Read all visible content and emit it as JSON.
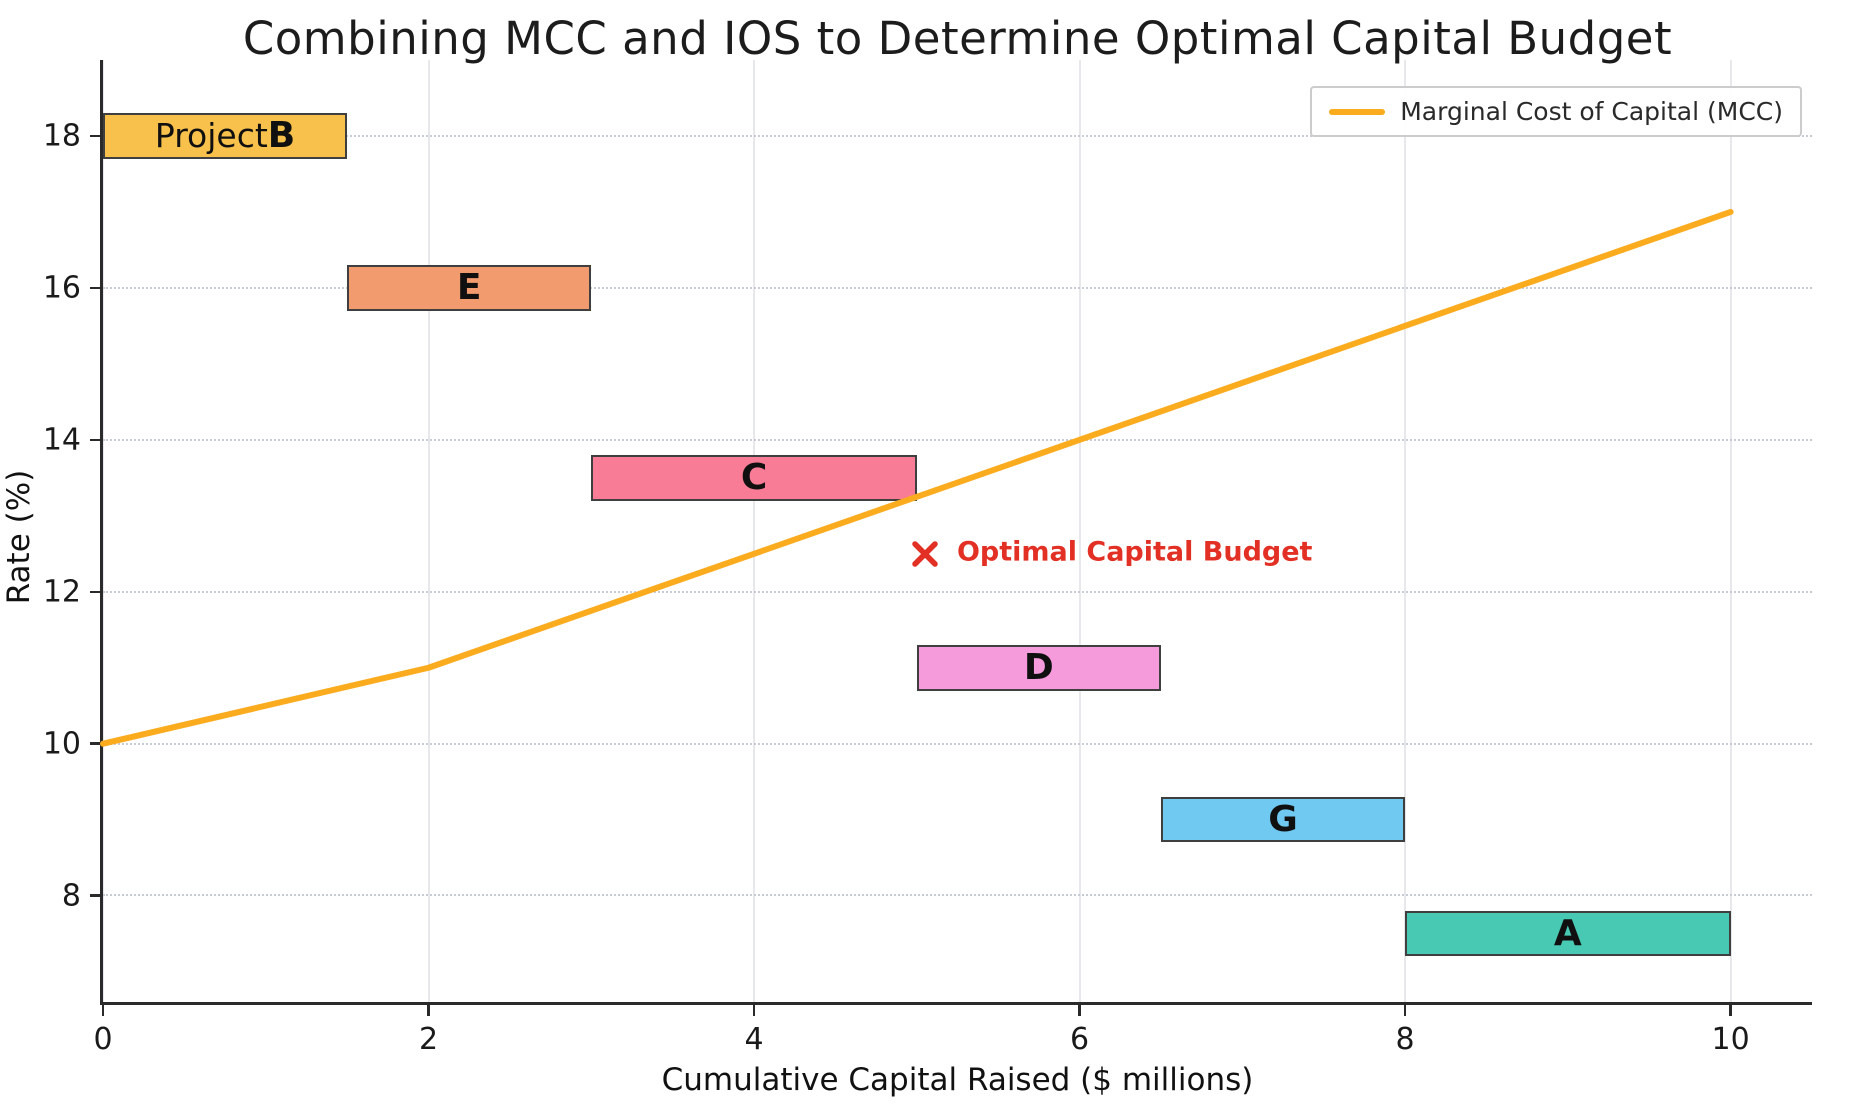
{
  "chart_data": {
    "type": "line",
    "title": "Combining MCC and IOS to Determine Optimal Capital Budget",
    "xlabel": "Cumulative Capital Raised ($ millions)",
    "ylabel": "Rate (%)",
    "xlim": [
      0,
      10.5
    ],
    "ylim": [
      6.6,
      19.0
    ],
    "xticks": [
      0,
      2,
      4,
      6,
      8,
      10
    ],
    "yticks": [
      8,
      10,
      12,
      14,
      16,
      18
    ],
    "grid": true,
    "legend": {
      "position": "upper right",
      "entries": [
        {
          "label": "Marginal Cost of Capital (MCC)",
          "color": "#FBAB1E"
        }
      ]
    },
    "series": [
      {
        "name": "Marginal Cost of Capital (MCC)",
        "type": "line",
        "color": "#FBAB1E",
        "points": [
          [
            0,
            10
          ],
          [
            2,
            11
          ],
          [
            10,
            17
          ]
        ]
      }
    ],
    "ios_projects": [
      {
        "prefix": "Project ",
        "letter": "B",
        "x_start": 0,
        "x_end": 1.5,
        "rate": 18,
        "color": "#F8C14B"
      },
      {
        "prefix": "",
        "letter": "E",
        "x_start": 1.5,
        "x_end": 3,
        "rate": 16,
        "color": "#F29B6E"
      },
      {
        "prefix": "",
        "letter": "C",
        "x_start": 3,
        "x_end": 5,
        "rate": 13.5,
        "color": "#F87C95"
      },
      {
        "prefix": "",
        "letter": "D",
        "x_start": 5,
        "x_end": 6.5,
        "rate": 11,
        "color": "#F59ADB"
      },
      {
        "prefix": "",
        "letter": "G",
        "x_start": 6.5,
        "x_end": 8,
        "rate": 9,
        "color": "#70C9F1"
      },
      {
        "prefix": "",
        "letter": "A",
        "x_start": 8,
        "x_end": 10,
        "rate": 7.5,
        "color": "#47C9B3"
      }
    ],
    "bar_half_height": 0.3,
    "box_border_color": "#3f3f3f",
    "annotation": {
      "label": "Optimal Capital Budget",
      "x": 5.05,
      "y": 12.5,
      "marker": "x",
      "color": "#E23025"
    }
  }
}
